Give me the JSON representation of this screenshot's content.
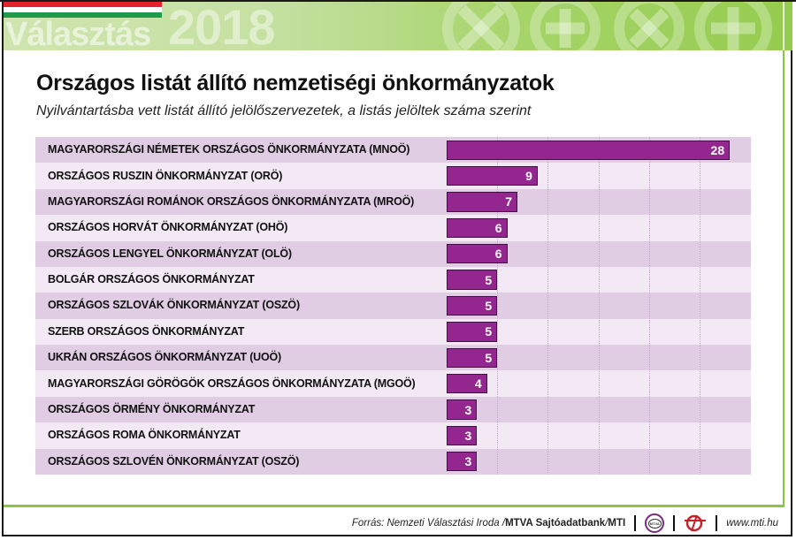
{
  "header": {
    "brand_word": "Választás",
    "brand_year": "2018",
    "flag_colors": [
      "#e2232a",
      "#ffffff",
      "#1f9a48"
    ],
    "ballot_icons": [
      "x-circle-icon",
      "plus-circle-icon",
      "x-circle-icon",
      "plus-circle-icon"
    ]
  },
  "title": "Országos listát állító nemzetiségi önkormányzatok",
  "subtitle": "Nyilvántartásba vett listát állító jelölőszervezetek, a listás jelöltek száma szerint",
  "colors": {
    "bar": "#93278f",
    "row_dark": "#e0cde4",
    "row_light": "#f2e9f4",
    "accent_green": "#8cc63f"
  },
  "chart_data": {
    "type": "bar",
    "orientation": "horizontal",
    "title": "Országos listát állító nemzetiségi önkormányzatok",
    "subtitle": "Nyilvántartásba vett listát állító jelölőszervezetek, a listás jelöltek száma szerint",
    "xlabel": "",
    "ylabel": "",
    "xlim": [
      0,
      30
    ],
    "grid": true,
    "grid_step": 5,
    "legend": "none",
    "categories": [
      "MAGYARORSZÁGI NÉMETEK ORSZÁGOS ÖNKORMÁNYZATA (MNOÖ)",
      "ORSZÁGOS RUSZIN ÖNKORMÁNYZAT (ORÖ)",
      "MAGYARORSZÁGI ROMÁNOK ORSZÁGOS ÖNKORMÁNYZATA (MROÖ)",
      "ORSZÁGOS HORVÁT ÖNKORMÁNYZAT (OHÖ)",
      "ORSZÁGOS LENGYEL ÖNKORMÁNYZAT (OLÖ)",
      "BOLGÁR ORSZÁGOS ÖNKORMÁNYZAT",
      "ORSZÁGOS SZLOVÁK ÖNKORMÁNYZAT (OSZÖ)",
      "SZERB ORSZÁGOS ÖNKORMÁNYZAT",
      "UKRÁN ORSZÁGOS ÖNKORMÁNYZAT (UOÖ)",
      "MAGYARORSZÁGI GÖRÖGÖK ORSZÁGOS ÖNKORMÁNYZATA (MGOÖ)",
      "ORSZÁGOS ÖRMÉNY ÖNKORMÁNYZAT",
      "ORSZÁGOS ROMA ÖNKORMÁNYZAT",
      "ORSZÁGOS SZLOVÉN ÖNKORMÁNYZAT (OSZÖ)"
    ],
    "values": [
      28,
      9,
      7,
      6,
      6,
      5,
      5,
      5,
      5,
      4,
      3,
      3,
      3
    ]
  },
  "footer": {
    "source_prefix": "Forrás: Nemzeti Választási Iroda / ",
    "source_bold": "MTVA Sajtóadatbank",
    "source_sep": " / ",
    "source_agency": "MTI",
    "logo1": "mtva-logo-icon",
    "logo1_text": "MTVA",
    "logo2": "mti-logo-icon",
    "website": "www.mti.hu"
  }
}
